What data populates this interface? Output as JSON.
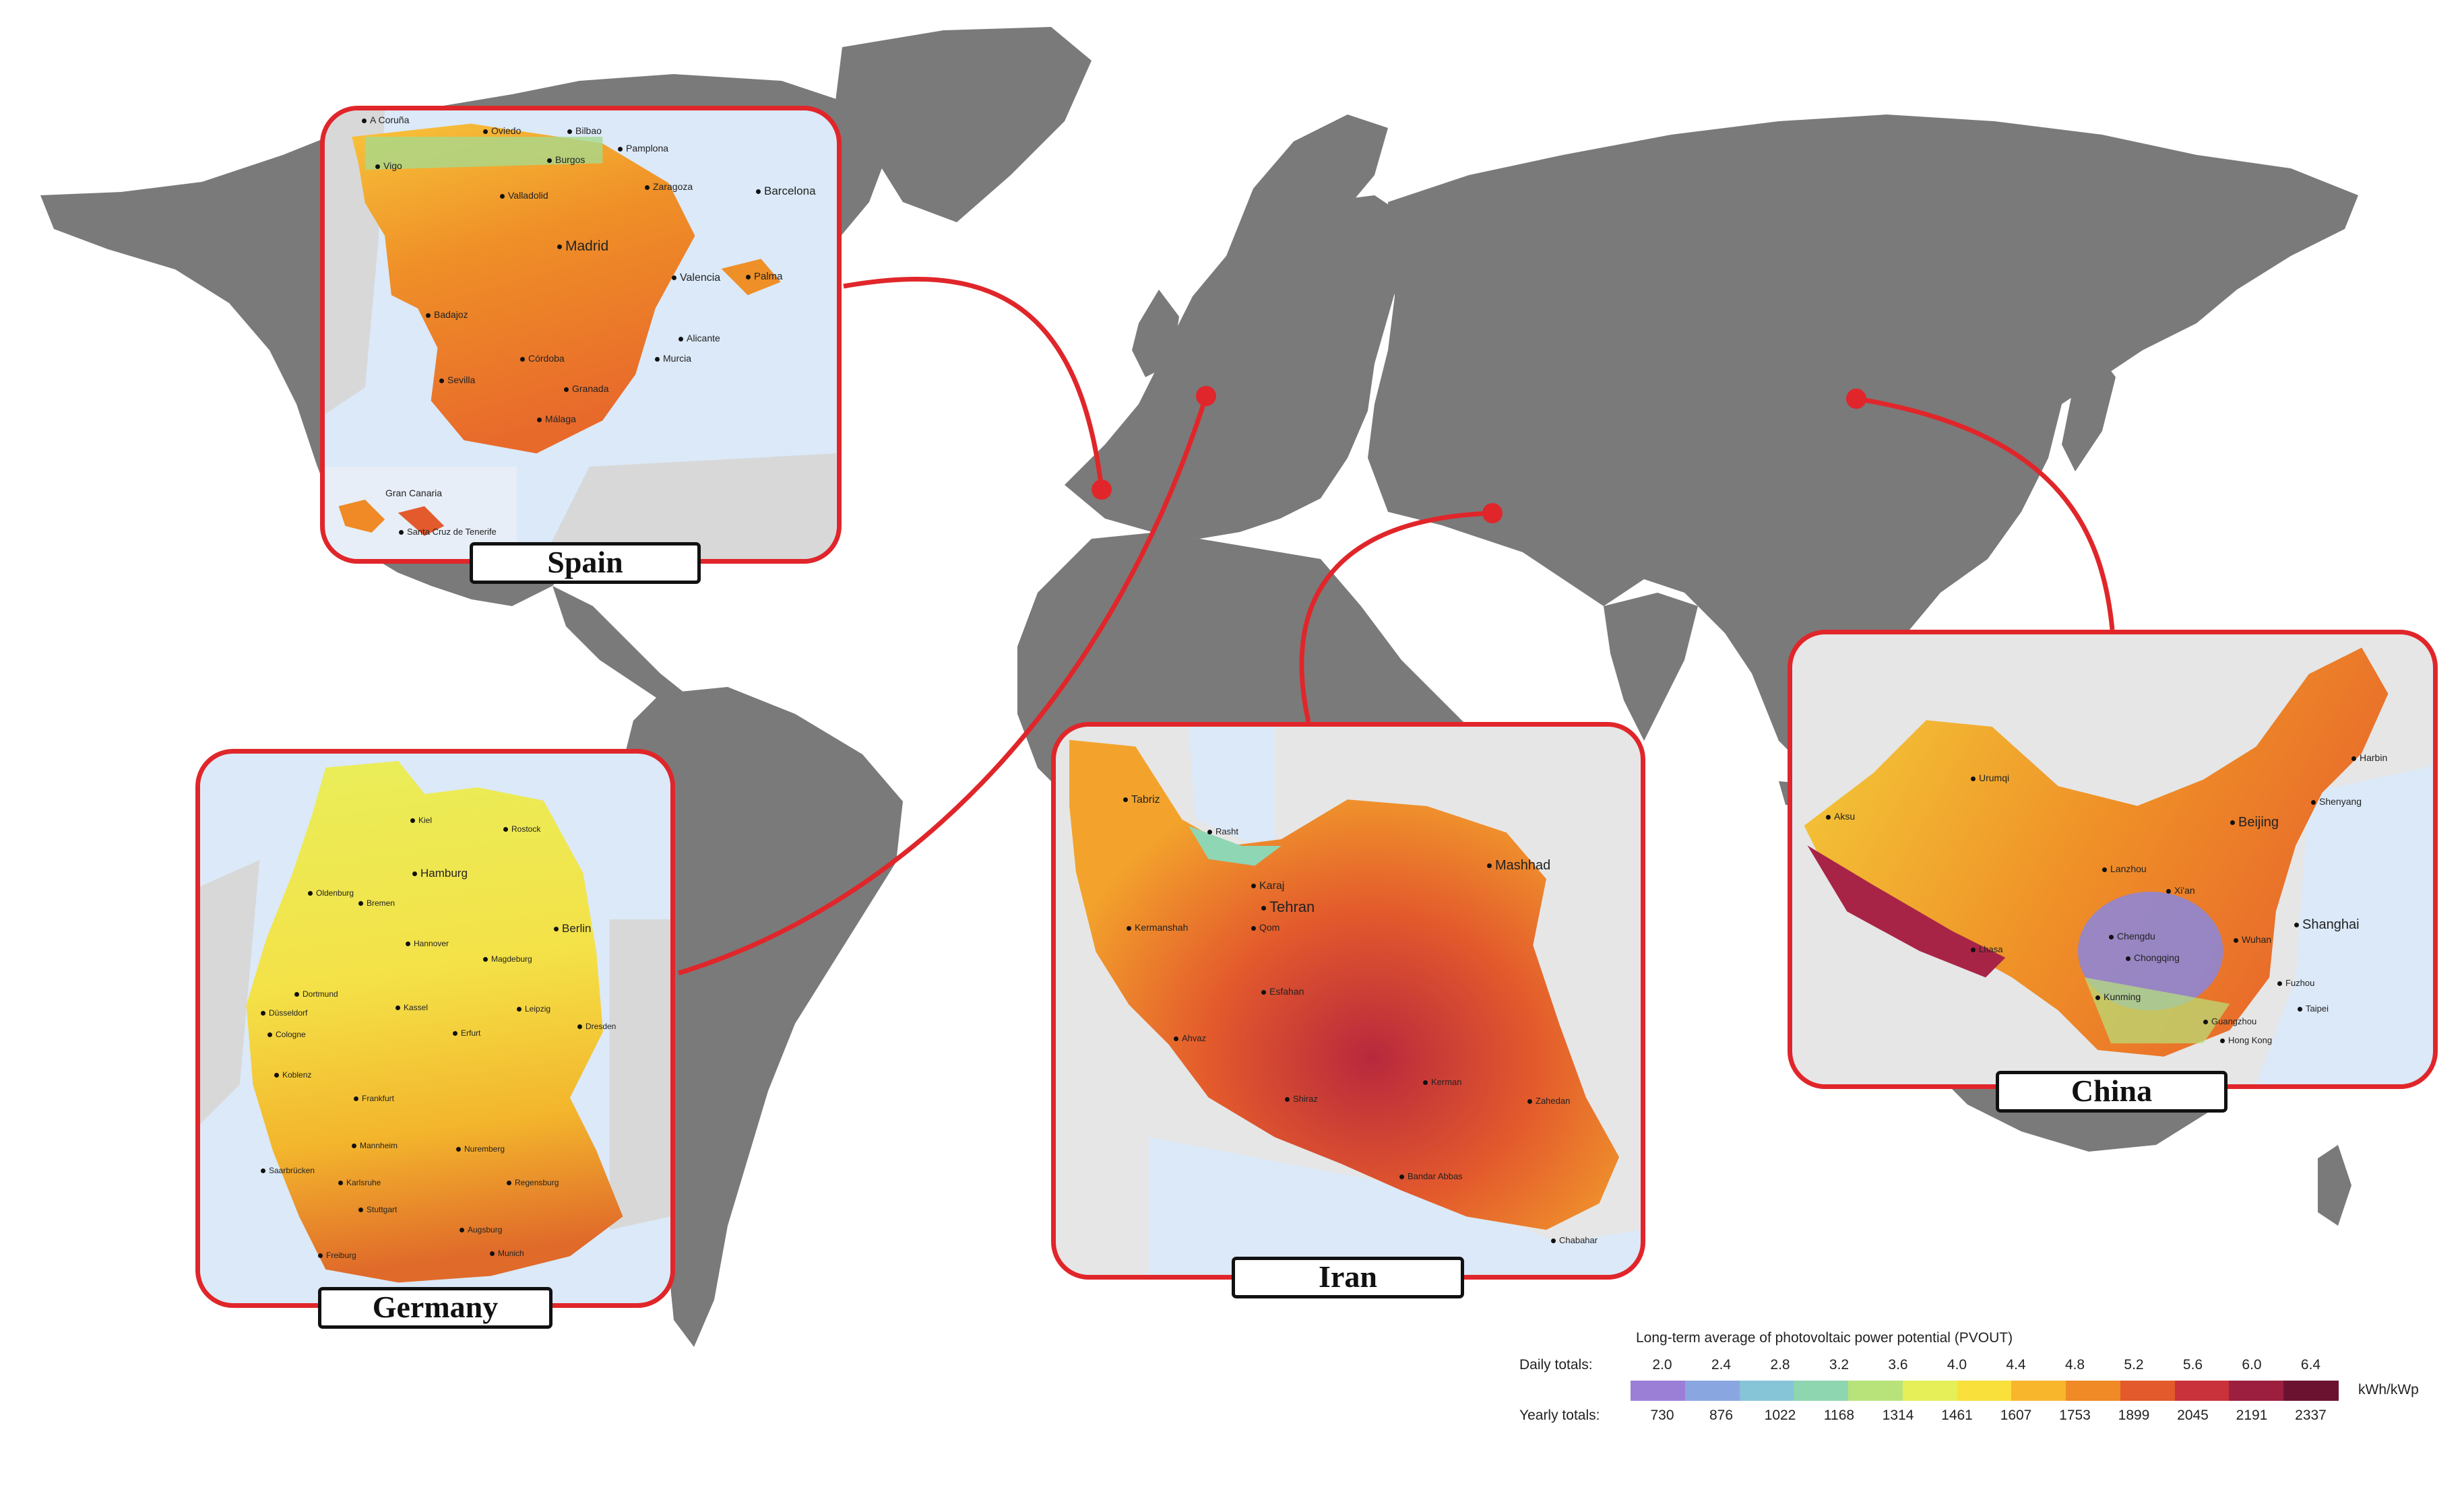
{
  "colors": {
    "land": "#7a7a7a",
    "ocean": "#ffffff",
    "frame": "#e0262a",
    "connector": "#e0262a"
  },
  "insets": {
    "spain": {
      "caption": "Spain",
      "cities": [
        "A Coruña",
        "Oviedo",
        "Bilbao",
        "Pamplona",
        "Vigo",
        "Burgos",
        "Zaragoza",
        "Barcelona",
        "Valladolid",
        "Madrid",
        "Palma",
        "Valencia",
        "Badajoz",
        "Alicante",
        "Córdoba",
        "Murcia",
        "Sevilla",
        "Granada",
        "Málaga",
        "Gran Canaria",
        "Santa Cruz de Tenerife"
      ]
    },
    "germany": {
      "caption": "Germany",
      "cities": [
        "Kiel",
        "Rostock",
        "Hamburg",
        "Oldenburg",
        "Bremen",
        "Berlin",
        "Hannover",
        "Magdeburg",
        "Dortmund",
        "Düsseldorf",
        "Kassel",
        "Leipzig",
        "Dresden",
        "Cologne",
        "Erfurt",
        "Koblenz",
        "Frankfurt",
        "Mannheim",
        "Nuremberg",
        "Saarbrücken",
        "Karlsruhe",
        "Regensburg",
        "Stuttgart",
        "Augsburg",
        "Freiburg",
        "Munich"
      ]
    },
    "iran": {
      "caption": "Iran",
      "cities": [
        "Tabriz",
        "Rasht",
        "Mashhad",
        "Karaj",
        "Tehran",
        "Kermanshah",
        "Qom",
        "Esfahan",
        "Ahvaz",
        "Kerman",
        "Shiraz",
        "Zahedan",
        "Bandar Abbas",
        "Chabahar"
      ]
    },
    "china": {
      "caption": "China",
      "cities": [
        "Harbin",
        "Urumqi",
        "Shenyang",
        "Aksu",
        "Beijing",
        "Lanzhou",
        "Xi'an",
        "Shanghai",
        "Lhasa",
        "Chengdu",
        "Wuhan",
        "Chongqing",
        "Fuzhou",
        "Kunming",
        "Taipei",
        "Guangzhou",
        "Hong Kong"
      ]
    }
  },
  "legend": {
    "title": "Long-term average of photovoltaic power potential (PVOUT)",
    "daily_label": "Daily totals:",
    "yearly_label": "Yearly totals:",
    "unit": "kWh/kWp",
    "daily_values": [
      "2.0",
      "2.4",
      "2.8",
      "3.2",
      "3.6",
      "4.0",
      "4.4",
      "4.8",
      "5.2",
      "5.6",
      "6.0",
      "6.4"
    ],
    "yearly_values": [
      "730",
      "876",
      "1022",
      "1168",
      "1314",
      "1461",
      "1607",
      "1753",
      "1899",
      "2045",
      "2191",
      "2337"
    ],
    "colors": [
      "#9b7fd6",
      "#8aa6e0",
      "#86c4d8",
      "#8ed6b0",
      "#b7e37a",
      "#e6ef58",
      "#f9e03a",
      "#f8b62c",
      "#ef8a26",
      "#e35a2c",
      "#c9323a",
      "#9d1f40",
      "#6b1230"
    ]
  }
}
